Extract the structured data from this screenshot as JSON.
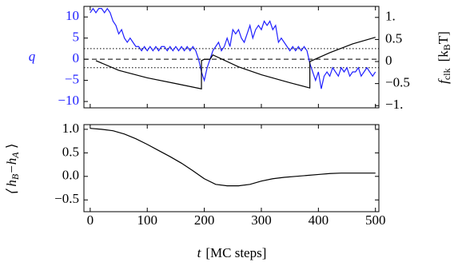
{
  "chart_data": [
    {
      "type": "line",
      "ylabel": "q",
      "y2label": {
        "symbol": "f",
        "subscript": "clk",
        "unit": "[k",
        "unit_subscript": "B",
        "unit_tail": "T]"
      },
      "xlim": [
        -11,
        506
      ],
      "xticks": [
        0,
        100,
        200,
        300,
        400,
        500
      ],
      "ylim": [
        -11.5,
        12.5
      ],
      "yticks": [
        {
          "value": -10,
          "label": "−10"
        },
        {
          "value": -5,
          "label": "−5"
        },
        0,
        5,
        10
      ],
      "y2lim": [
        -1.05,
        1.25
      ],
      "y2ticks": [
        {
          "value": -1,
          "label": "−1."
        },
        {
          "value": -0.5,
          "label": "−0.5"
        },
        0,
        0.5,
        {
          "value": 1,
          "label": "1."
        }
      ],
      "reference_lines": [
        {
          "value": 0,
          "style": "dashed"
        },
        {
          "value": 2.5,
          "style": "dotted"
        },
        {
          "value": -2,
          "style": "dotted"
        }
      ],
      "x": [
        0,
        5,
        10,
        15,
        20,
        25,
        30,
        35,
        40,
        45,
        50,
        55,
        60,
        65,
        70,
        75,
        80,
        85,
        90,
        95,
        100,
        105,
        110,
        115,
        120,
        125,
        130,
        135,
        140,
        145,
        150,
        155,
        160,
        165,
        170,
        175,
        180,
        185,
        190,
        195,
        200,
        205,
        210,
        215,
        220,
        225,
        230,
        235,
        240,
        245,
        250,
        255,
        260,
        265,
        270,
        275,
        280,
        285,
        290,
        295,
        300,
        305,
        310,
        315,
        320,
        325,
        330,
        335,
        340,
        345,
        350,
        355,
        360,
        365,
        370,
        375,
        380,
        385,
        390,
        395,
        400,
        405,
        410,
        415,
        420,
        425,
        430,
        435,
        440,
        445,
        450,
        455,
        460,
        465,
        470,
        475,
        480,
        485,
        490,
        495,
        500
      ],
      "series": [
        {
          "name": "q",
          "color": "#1f1fff",
          "axis": "y",
          "values": [
            11,
            12,
            11,
            12,
            12,
            11,
            12,
            11,
            9,
            8,
            6,
            7,
            5,
            4,
            5,
            4,
            3,
            3,
            2,
            3,
            2,
            3,
            2,
            3,
            2,
            3,
            3,
            2,
            3,
            2,
            3,
            2,
            3,
            2,
            3,
            2,
            3,
            2,
            0,
            -3,
            -5,
            -2,
            0,
            2,
            3,
            4,
            2,
            3,
            5,
            3,
            7,
            6,
            7,
            5,
            4,
            6,
            8,
            5,
            7,
            8,
            7,
            9,
            8,
            9,
            7,
            8,
            4,
            5,
            4,
            3,
            2,
            3,
            2,
            3,
            2,
            3,
            2,
            -1,
            -3,
            -5,
            -3,
            -7,
            -4,
            -3,
            -4,
            -2,
            -3,
            -4,
            -2,
            -3,
            -2,
            -4,
            -3,
            -3,
            -2,
            -4,
            -3,
            -2,
            -3,
            -4,
            -3
          ]
        },
        {
          "name": "f_clk",
          "color": "#000000",
          "axis": "y2",
          "x": [
            10,
            50,
            100,
            150,
            195,
            195,
            200,
            210,
            215,
            260,
            300,
            350,
            385,
            385,
            420,
            460,
            500
          ],
          "values": [
            0.02,
            -0.2,
            -0.37,
            -0.5,
            -0.62,
            0.02,
            0.05,
            0.05,
            0.15,
            -0.12,
            -0.3,
            -0.48,
            -0.6,
            0.0,
            0.2,
            0.4,
            0.55
          ]
        }
      ]
    },
    {
      "type": "line",
      "ylabel": {
        "open": "⟨ h",
        "sub_b": "B",
        "minus": "−h",
        "sub_a": "A",
        "close": " ⟩"
      },
      "xlabel": {
        "symbol": "t",
        "unit": "[MC steps]"
      },
      "xlim": [
        -11,
        506
      ],
      "xticks": [
        0,
        100,
        200,
        300,
        400,
        500
      ],
      "ylim": [
        -0.75,
        1.1
      ],
      "yticks": [
        {
          "value": -0.5,
          "label": "−0.5"
        },
        {
          "value": 0,
          "label": "0.0"
        },
        0.5,
        {
          "value": 1,
          "label": "1.0"
        }
      ],
      "series": [
        {
          "name": "h",
          "color": "#000000",
          "x": [
            0,
            20,
            40,
            60,
            80,
            100,
            120,
            140,
            160,
            180,
            200,
            220,
            240,
            260,
            280,
            300,
            320,
            340,
            360,
            380,
            400,
            420,
            440,
            460,
            480,
            500
          ],
          "values": [
            1.02,
            1.0,
            0.97,
            0.9,
            0.8,
            0.68,
            0.55,
            0.42,
            0.28,
            0.12,
            -0.05,
            -0.17,
            -0.2,
            -0.2,
            -0.17,
            -0.1,
            -0.05,
            -0.02,
            0.0,
            0.02,
            0.04,
            0.06,
            0.07,
            0.07,
            0.07,
            0.07
          ]
        }
      ]
    }
  ]
}
